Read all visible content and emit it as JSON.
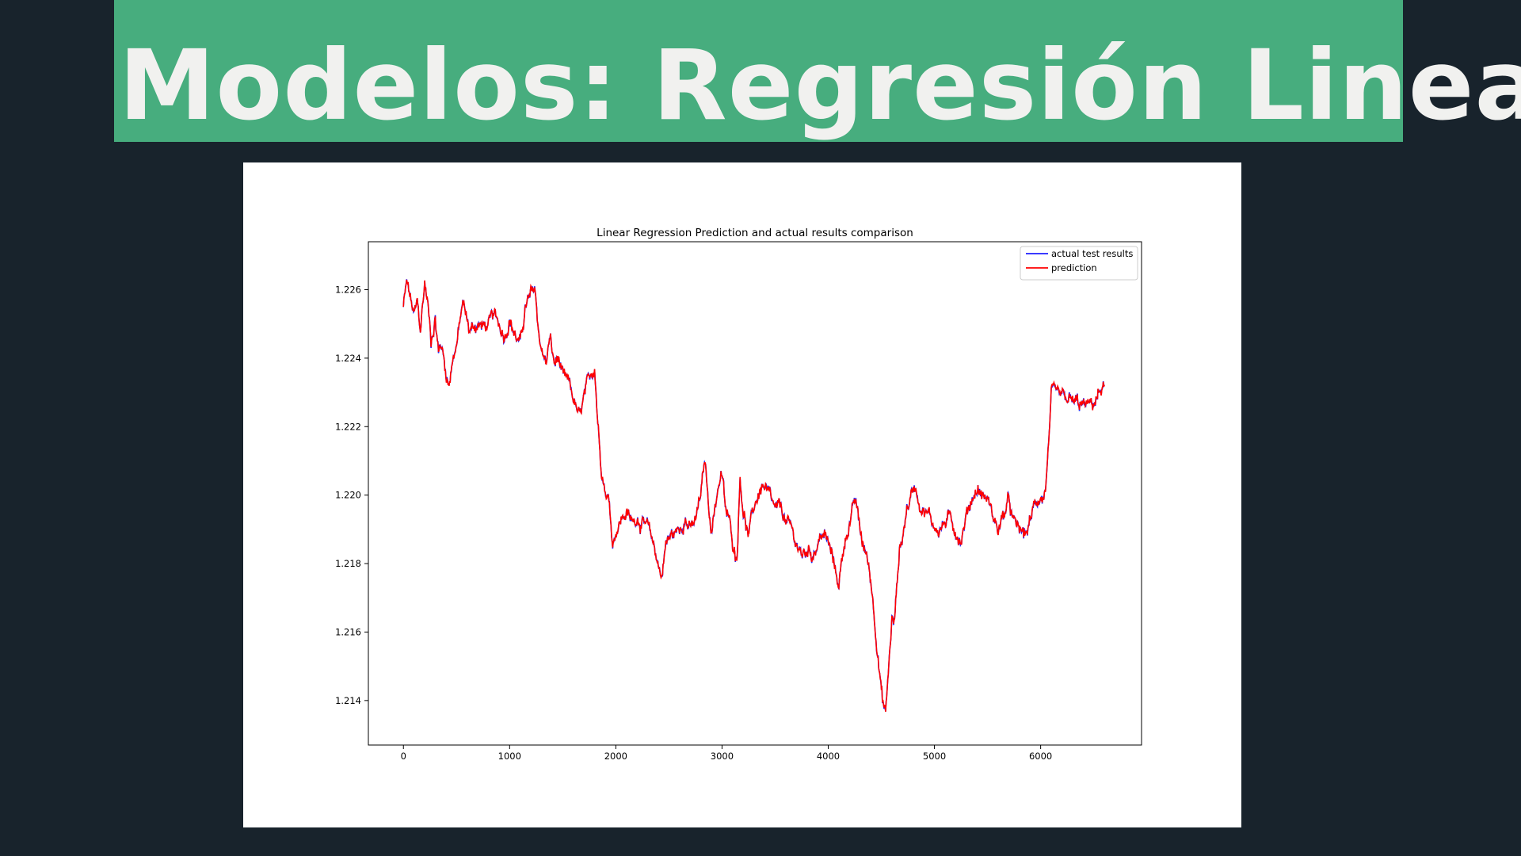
{
  "slide": {
    "title": "Modelos: Regresión Lineal"
  },
  "colors": {
    "background": "#18232c",
    "banner": "#47ad7e",
    "title_text": "#f1f1ef",
    "actual": "#1f1fff",
    "prediction": "#ff0000"
  },
  "chart_data": {
    "type": "line",
    "title": "Linear Regression Prediction and actual results comparison",
    "xlabel": "",
    "ylabel": "",
    "xlim": [
      -330,
      6950
    ],
    "ylim": [
      1.2127,
      1.2274
    ],
    "x_ticks": [
      0,
      1000,
      2000,
      3000,
      4000,
      5000,
      6000
    ],
    "y_ticks": [
      1.214,
      1.216,
      1.218,
      1.22,
      1.222,
      1.224,
      1.226
    ],
    "y_tick_decimals": 3,
    "grid": false,
    "legend_position": "top-right",
    "x_step": 5,
    "anchors": [
      [
        0,
        1.2255
      ],
      [
        30,
        1.2262
      ],
      [
        60,
        1.2258
      ],
      [
        100,
        1.2252
      ],
      [
        130,
        1.2256
      ],
      [
        160,
        1.2248
      ],
      [
        200,
        1.2262
      ],
      [
        230,
        1.2256
      ],
      [
        260,
        1.2245
      ],
      [
        300,
        1.2252
      ],
      [
        330,
        1.2242
      ],
      [
        360,
        1.2244
      ],
      [
        400,
        1.2236
      ],
      [
        430,
        1.2232
      ],
      [
        460,
        1.224
      ],
      [
        500,
        1.2244
      ],
      [
        560,
        1.2256
      ],
      [
        620,
        1.2248
      ],
      [
        700,
        1.225
      ],
      [
        780,
        1.2249
      ],
      [
        850,
        1.2252
      ],
      [
        900,
        1.225
      ],
      [
        950,
        1.2247
      ],
      [
        1000,
        1.2252
      ],
      [
        1050,
        1.2247
      ],
      [
        1100,
        1.2244
      ],
      [
        1150,
        1.2255
      ],
      [
        1200,
        1.2258
      ],
      [
        1240,
        1.226
      ],
      [
        1270,
        1.2248
      ],
      [
        1300,
        1.2243
      ],
      [
        1340,
        1.2238
      ],
      [
        1380,
        1.2246
      ],
      [
        1420,
        1.2238
      ],
      [
        1460,
        1.224
      ],
      [
        1500,
        1.2234
      ],
      [
        1560,
        1.2232
      ],
      [
        1620,
        1.2226
      ],
      [
        1660,
        1.2222
      ],
      [
        1700,
        1.2228
      ],
      [
        1740,
        1.2232
      ],
      [
        1800,
        1.2238
      ],
      [
        1830,
        1.2222
      ],
      [
        1860,
        1.221
      ],
      [
        1900,
        1.2202
      ],
      [
        1940,
        1.2198
      ],
      [
        1970,
        1.2186
      ],
      [
        2000,
        1.219
      ],
      [
        2050,
        1.2193
      ],
      [
        2100,
        1.2195
      ],
      [
        2150,
        1.2192
      ],
      [
        2200,
        1.2194
      ],
      [
        2250,
        1.2192
      ],
      [
        2300,
        1.219
      ],
      [
        2350,
        1.2186
      ],
      [
        2400,
        1.218
      ],
      [
        2430,
        1.2176
      ],
      [
        2470,
        1.2186
      ],
      [
        2520,
        1.2188
      ],
      [
        2600,
        1.219
      ],
      [
        2650,
        1.2194
      ],
      [
        2700,
        1.219
      ],
      [
        2750,
        1.2192
      ],
      [
        2800,
        1.22
      ],
      [
        2840,
        1.221
      ],
      [
        2870,
        1.2198
      ],
      [
        2900,
        1.219
      ],
      [
        2930,
        1.2196
      ],
      [
        2970,
        1.2204
      ],
      [
        3000,
        1.2206
      ],
      [
        3030,
        1.2196
      ],
      [
        3070,
        1.2192
      ],
      [
        3100,
        1.2186
      ],
      [
        3140,
        1.2182
      ],
      [
        3170,
        1.2206
      ],
      [
        3200,
        1.2196
      ],
      [
        3250,
        1.2188
      ],
      [
        3300,
        1.2196
      ],
      [
        3340,
        1.22
      ],
      [
        3380,
        1.2203
      ],
      [
        3430,
        1.22
      ],
      [
        3500,
        1.2195
      ],
      [
        3560,
        1.2196
      ],
      [
        3600,
        1.2192
      ],
      [
        3650,
        1.219
      ],
      [
        3700,
        1.2186
      ],
      [
        3750,
        1.2182
      ],
      [
        3800,
        1.2184
      ],
      [
        3850,
        1.2183
      ],
      [
        3900,
        1.2186
      ],
      [
        3950,
        1.2189
      ],
      [
        4000,
        1.2186
      ],
      [
        4050,
        1.218
      ],
      [
        4100,
        1.2174
      ],
      [
        4150,
        1.2186
      ],
      [
        4200,
        1.2192
      ],
      [
        4250,
        1.2198
      ],
      [
        4280,
        1.2194
      ],
      [
        4320,
        1.2186
      ],
      [
        4380,
        1.218
      ],
      [
        4420,
        1.217
      ],
      [
        4450,
        1.216
      ],
      [
        4480,
        1.215
      ],
      [
        4510,
        1.214
      ],
      [
        4540,
        1.2136
      ],
      [
        4570,
        1.215
      ],
      [
        4600,
        1.2164
      ],
      [
        4620,
        1.2162
      ],
      [
        4640,
        1.217
      ],
      [
        4670,
        1.2184
      ],
      [
        4700,
        1.2188
      ],
      [
        4740,
        1.2196
      ],
      [
        4780,
        1.22
      ],
      [
        4820,
        1.2203
      ],
      [
        4860,
        1.2198
      ],
      [
        4900,
        1.2196
      ],
      [
        4950,
        1.2194
      ],
      [
        5000,
        1.2191
      ],
      [
        5050,
        1.219
      ],
      [
        5100,
        1.2192
      ],
      [
        5150,
        1.2193
      ],
      [
        5200,
        1.219
      ],
      [
        5250,
        1.2187
      ],
      [
        5300,
        1.2194
      ],
      [
        5350,
        1.2199
      ],
      [
        5400,
        1.2202
      ],
      [
        5450,
        1.22
      ],
      [
        5500,
        1.2199
      ],
      [
        5550,
        1.2194
      ],
      [
        5600,
        1.219
      ],
      [
        5650,
        1.2194
      ],
      [
        5700,
        1.2198
      ],
      [
        5750,
        1.2191
      ],
      [
        5800,
        1.219
      ],
      [
        5850,
        1.2188
      ],
      [
        5900,
        1.2192
      ],
      [
        5950,
        1.2198
      ],
      [
        6000,
        1.22
      ],
      [
        6030,
        1.2199
      ],
      [
        6050,
        1.2204
      ],
      [
        6080,
        1.2216
      ],
      [
        6100,
        1.2228
      ],
      [
        6130,
        1.2229
      ],
      [
        6200,
        1.2228
      ],
      [
        6300,
        1.2227
      ],
      [
        6400,
        1.2226
      ],
      [
        6480,
        1.2226
      ],
      [
        6520,
        1.2228
      ],
      [
        6560,
        1.223
      ],
      [
        6600,
        1.2232
      ]
    ],
    "series": [
      {
        "name": "actual test results",
        "color": "#1f1fff"
      },
      {
        "name": "prediction",
        "color": "#ff0000"
      }
    ]
  }
}
